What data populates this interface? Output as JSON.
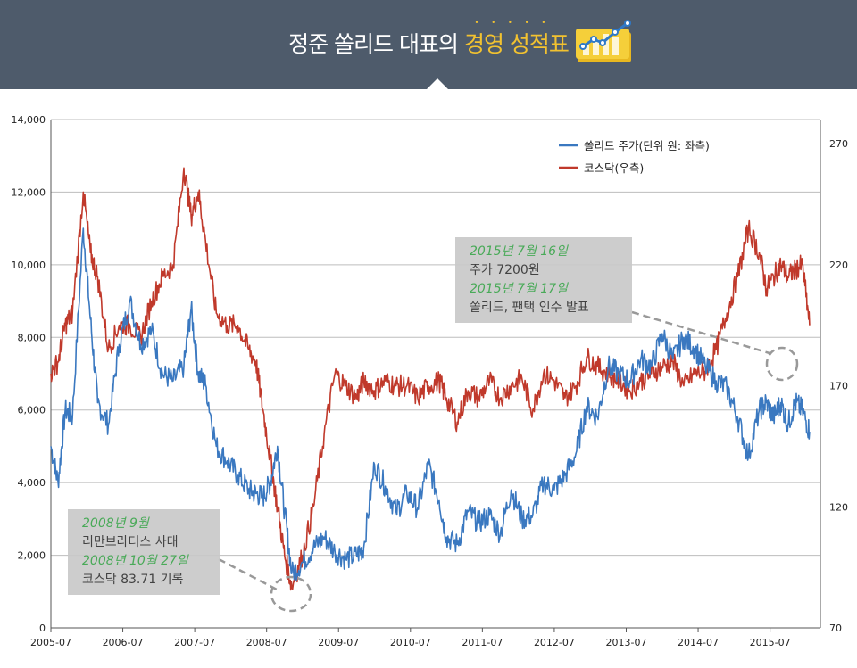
{
  "header": {
    "title_main": "정준 쏠리드 대표의 ",
    "title_highlight": "경영 성적표",
    "icon": "chart-badge-icon"
  },
  "colors": {
    "banner": "#4e5b6b",
    "highlight": "#f2c230",
    "solid": "#3a78c0",
    "kosdaq": "#c0392b",
    "note_green": "#3aa34a"
  },
  "chart_data": {
    "type": "line",
    "x_ticks": [
      "2005-07",
      "2006-07",
      "2007-07",
      "2008-07",
      "2009-07",
      "2010-07",
      "2011-07",
      "2012-07",
      "2013-07",
      "2014-07",
      "2015-07"
    ],
    "y_left": {
      "ticks": [
        "0",
        "2,000",
        "4,000",
        "6,000",
        "8,000",
        "10,000",
        "12,000",
        "14,000"
      ],
      "range": [
        0,
        14000
      ]
    },
    "y_right": {
      "ticks": [
        "70",
        "120",
        "170",
        "220",
        "270"
      ],
      "range": [
        70,
        280
      ]
    },
    "grid": true,
    "legend_position": "top-right",
    "series": [
      {
        "name": "쏠리드 주가(단위 원: 좌측)",
        "axis": "left",
        "x": [
          2005.5,
          2005.6,
          2005.7,
          2005.8,
          2005.95,
          2006.05,
          2006.15,
          2006.3,
          2006.45,
          2006.6,
          2006.75,
          2006.9,
          2007.05,
          2007.2,
          2007.35,
          2007.45,
          2007.55,
          2007.65,
          2007.8,
          2007.95,
          2008.1,
          2008.25,
          2008.35,
          2008.45,
          2008.55,
          2008.65,
          2008.75,
          2008.85,
          2009.0,
          2009.15,
          2009.3,
          2009.45,
          2009.6,
          2009.75,
          2009.85,
          2010.0,
          2010.15,
          2010.3,
          2010.45,
          2010.6,
          2010.75,
          2010.9,
          2011.0,
          2011.15,
          2011.3,
          2011.45,
          2011.6,
          2011.75,
          2011.9,
          2012.05,
          2012.2,
          2012.35,
          2012.5,
          2012.65,
          2012.8,
          2012.95,
          2013.1,
          2013.25,
          2013.4,
          2013.55,
          2013.7,
          2013.85,
          2014.0,
          2014.15,
          2014.3,
          2014.45,
          2014.6,
          2014.75,
          2014.9,
          2015.05,
          2015.2,
          2015.35,
          2015.45,
          2015.55,
          2015.65,
          2015.75,
          2015.85,
          2015.95,
          2016.05
        ],
        "values": [
          5000,
          4000,
          6000,
          5800,
          11000,
          8500,
          6200,
          5600,
          7800,
          9000,
          7800,
          8200,
          7000,
          6800,
          7200,
          8800,
          7000,
          6700,
          5000,
          4600,
          4200,
          3800,
          3700,
          3600,
          4000,
          5000,
          3200,
          1500,
          1800,
          2200,
          2500,
          2100,
          1900,
          2000,
          2200,
          4500,
          3900,
          3200,
          3700,
          3300,
          4500,
          3500,
          2500,
          2300,
          3200,
          2900,
          3100,
          2600,
          3800,
          3000,
          3100,
          4000,
          3800,
          4200,
          4800,
          6100,
          5800,
          7200,
          7000,
          6800,
          7400,
          7200,
          8100,
          7400,
          8000,
          7700,
          7200,
          6800,
          6600,
          5800,
          4700,
          6000,
          6200,
          5800,
          6200,
          5600,
          6200,
          6000,
          5400
        ]
      },
      {
        "name": "코스닥(우측)",
        "axis": "right",
        "x": [
          2005.5,
          2005.6,
          2005.7,
          2005.8,
          2005.95,
          2006.05,
          2006.15,
          2006.3,
          2006.45,
          2006.6,
          2006.75,
          2006.9,
          2007.05,
          2007.2,
          2007.35,
          2007.45,
          2007.55,
          2007.65,
          2007.8,
          2007.95,
          2008.1,
          2008.25,
          2008.35,
          2008.45,
          2008.55,
          2008.65,
          2008.75,
          2008.85,
          2009.0,
          2009.15,
          2009.3,
          2009.45,
          2009.6,
          2009.75,
          2009.85,
          2010.0,
          2010.15,
          2010.3,
          2010.45,
          2010.6,
          2010.75,
          2010.9,
          2011.0,
          2011.15,
          2011.3,
          2011.45,
          2011.6,
          2011.75,
          2011.9,
          2012.05,
          2012.2,
          2012.35,
          2012.5,
          2012.65,
          2012.8,
          2012.95,
          2013.1,
          2013.25,
          2013.4,
          2013.55,
          2013.7,
          2013.85,
          2014.0,
          2014.15,
          2014.3,
          2014.45,
          2014.6,
          2014.75,
          2014.9,
          2015.05,
          2015.2,
          2015.35,
          2015.45,
          2015.55,
          2015.65,
          2015.75,
          2015.85,
          2015.95,
          2016.05
        ],
        "values": [
          175,
          180,
          195,
          200,
          250,
          225,
          215,
          185,
          195,
          195,
          190,
          205,
          215,
          220,
          260,
          240,
          250,
          230,
          200,
          195,
          195,
          185,
          180,
          160,
          140,
          120,
          100,
          87,
          100,
          120,
          150,
          175,
          170,
          165,
          172,
          168,
          172,
          170,
          170,
          165,
          170,
          172,
          165,
          155,
          168,
          165,
          172,
          165,
          170,
          173,
          160,
          175,
          172,
          165,
          170,
          182,
          178,
          175,
          172,
          168,
          172,
          175,
          178,
          180,
          170,
          175,
          176,
          185,
          200,
          215,
          235,
          225,
          210,
          215,
          220,
          215,
          218,
          220,
          195
        ]
      }
    ],
    "annotations": [
      {
        "lines": [
          "2008년 9월",
          "리만브라더스 사태",
          "2008년 10월 27일",
          "코스닥 83.71 기록"
        ]
      },
      {
        "lines": [
          "2015년 7월 16일",
          "주가 7200원",
          "2015년 7월 17일",
          "쏠리드, 팬택 인수 발표"
        ]
      }
    ]
  }
}
